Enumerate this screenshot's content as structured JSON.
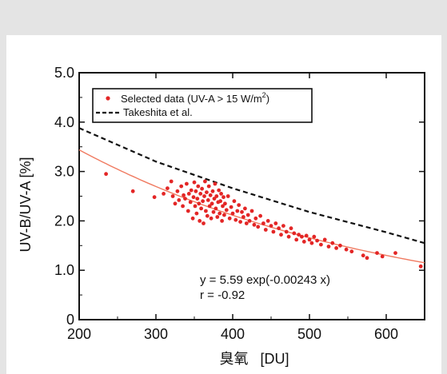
{
  "chart_data": {
    "type": "scatter",
    "xlabel": "臭氧   [DU]",
    "ylabel": "UV-B/UV-A [%]",
    "xlim": [
      200,
      650
    ],
    "ylim": [
      0,
      5
    ],
    "xticks": [
      "200",
      "300",
      "400",
      "500",
      "600"
    ],
    "yticks": [
      "0",
      "1.0",
      "2.0",
      "3.0",
      "4.0",
      "5.0"
    ],
    "legend_position": "top-left",
    "legend": {
      "scatter_label": "Selected data (UV-A > 15 W/m",
      "scatter_label_sup": "2",
      "scatter_label_end": ")",
      "dashed_label": "Takeshita et al."
    },
    "annotation": {
      "equation": "y = 5.59 exp(-0.00243  x)",
      "r": "r = -0.92"
    },
    "colors": {
      "points": "#e32626",
      "fit": "#f07a60",
      "dashed": "#111111"
    },
    "fit_line": {
      "label": "y = 5.59 exp(-0.00243  x)",
      "a": 5.59,
      "b": -0.00243,
      "x_range": [
        200,
        650
      ]
    },
    "dashed_line": {
      "label": "Takeshita et al.",
      "x": [
        200,
        300,
        400,
        500,
        600,
        650
      ],
      "y": [
        3.88,
        3.2,
        2.66,
        2.18,
        1.77,
        1.55
      ]
    },
    "series": [
      {
        "name": "Selected data (UV-A > 15 W/m2)",
        "points": [
          [
            235,
            2.95
          ],
          [
            270,
            2.6
          ],
          [
            298,
            2.48
          ],
          [
            310,
            2.55
          ],
          [
            315,
            2.66
          ],
          [
            320,
            2.8
          ],
          [
            322,
            2.5
          ],
          [
            325,
            2.35
          ],
          [
            328,
            2.6
          ],
          [
            330,
            2.42
          ],
          [
            333,
            2.7
          ],
          [
            335,
            2.3
          ],
          [
            336,
            2.52
          ],
          [
            338,
            2.45
          ],
          [
            340,
            2.75
          ],
          [
            342,
            2.2
          ],
          [
            343,
            2.55
          ],
          [
            345,
            2.38
          ],
          [
            346,
            2.62
          ],
          [
            348,
            2.05
          ],
          [
            349,
            2.48
          ],
          [
            350,
            2.78
          ],
          [
            351,
            2.3
          ],
          [
            352,
            2.6
          ],
          [
            353,
            2.15
          ],
          [
            354,
            2.45
          ],
          [
            355,
            2.7
          ],
          [
            356,
            2.35
          ],
          [
            357,
            2.0
          ],
          [
            358,
            2.55
          ],
          [
            359,
            2.25
          ],
          [
            360,
            2.65
          ],
          [
            361,
            2.4
          ],
          [
            362,
            1.95
          ],
          [
            363,
            2.5
          ],
          [
            364,
            2.8
          ],
          [
            365,
            2.2
          ],
          [
            366,
            2.58
          ],
          [
            367,
            2.1
          ],
          [
            368,
            2.42
          ],
          [
            369,
            2.7
          ],
          [
            370,
            2.3
          ],
          [
            371,
            2.52
          ],
          [
            372,
            2.05
          ],
          [
            373,
            2.35
          ],
          [
            374,
            2.6
          ],
          [
            375,
            2.18
          ],
          [
            376,
            2.45
          ],
          [
            377,
            2.75
          ],
          [
            378,
            2.25
          ],
          [
            379,
            2.5
          ],
          [
            380,
            2.08
          ],
          [
            381,
            2.38
          ],
          [
            382,
            2.62
          ],
          [
            383,
            2.15
          ],
          [
            384,
            2.4
          ],
          [
            385,
            2.55
          ],
          [
            386,
            2.0
          ],
          [
            387,
            2.3
          ],
          [
            388,
            2.48
          ],
          [
            389,
            2.12
          ],
          [
            390,
            2.35
          ],
          [
            392,
            2.22
          ],
          [
            394,
            2.5
          ],
          [
            396,
            2.05
          ],
          [
            398,
            2.28
          ],
          [
            400,
            2.15
          ],
          [
            402,
            2.4
          ],
          [
            404,
            2.02
          ],
          [
            406,
            2.2
          ],
          [
            408,
            2.32
          ],
          [
            410,
            1.98
          ],
          [
            412,
            2.18
          ],
          [
            414,
            2.08
          ],
          [
            416,
            2.25
          ],
          [
            418,
            1.95
          ],
          [
            420,
            2.12
          ],
          [
            422,
            2.0
          ],
          [
            425,
            2.2
          ],
          [
            428,
            1.92
          ],
          [
            430,
            2.05
          ],
          [
            433,
            1.88
          ],
          [
            436,
            2.1
          ],
          [
            440,
            1.95
          ],
          [
            443,
            1.82
          ],
          [
            446,
            2.0
          ],
          [
            450,
            1.9
          ],
          [
            453,
            1.78
          ],
          [
            456,
            1.95
          ],
          [
            460,
            1.85
          ],
          [
            463,
            1.72
          ],
          [
            466,
            1.9
          ],
          [
            470,
            1.78
          ],
          [
            473,
            1.68
          ],
          [
            476,
            1.85
          ],
          [
            480,
            1.75
          ],
          [
            483,
            1.62
          ],
          [
            486,
            1.72
          ],
          [
            490,
            1.68
          ],
          [
            493,
            1.58
          ],
          [
            496,
            1.7
          ],
          [
            500,
            1.62
          ],
          [
            503,
            1.55
          ],
          [
            506,
            1.68
          ],
          [
            510,
            1.6
          ],
          [
            515,
            1.52
          ],
          [
            520,
            1.62
          ],
          [
            525,
            1.48
          ],
          [
            530,
            1.55
          ],
          [
            535,
            1.45
          ],
          [
            540,
            1.5
          ],
          [
            548,
            1.42
          ],
          [
            555,
            1.38
          ],
          [
            570,
            1.3
          ],
          [
            575,
            1.25
          ],
          [
            588,
            1.35
          ],
          [
            595,
            1.28
          ],
          [
            612,
            1.35
          ],
          [
            645,
            1.08
          ]
        ]
      }
    ]
  }
}
